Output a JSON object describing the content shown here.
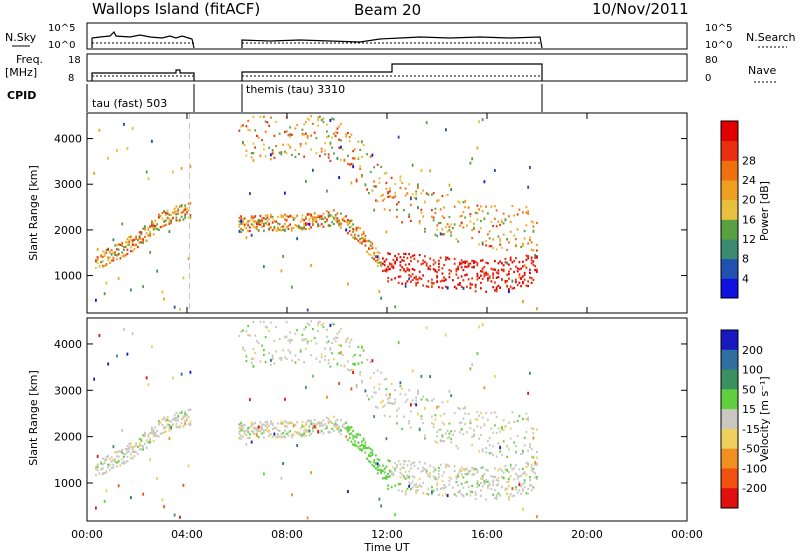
{
  "header": {
    "station": "Wallops Island (fitACF)",
    "beam": "Beam 20",
    "date": "10/Nov/2011"
  },
  "top_panels": {
    "nsky_label": "N.Sky",
    "nsky_ticks": [
      "10^5",
      "10^0"
    ],
    "nsearch_label": "N.Search",
    "nsearch_ticks": [
      "10^5",
      "10^0"
    ],
    "freq_label_line1": "Freq.",
    "freq_label_line2": "[MHz]",
    "freq_ticks": [
      "18",
      "8"
    ],
    "nave_label": "Nave",
    "nave_ticks": [
      "80",
      "0"
    ],
    "cpid_label": "CPID",
    "cpid_modes": [
      "tau (fast) 503",
      "themis (tau) 3310"
    ]
  },
  "colors": {
    "power": [
      "#1010e0",
      "#2050b0",
      "#3a8a70",
      "#5aa040",
      "#e8c040",
      "#f0a020",
      "#f07010",
      "#e83010",
      "#e00000"
    ],
    "velocity": [
      "#1818c0",
      "#2e6ea0",
      "#3a9060",
      "#60d040",
      "#c8c8c0",
      "#f0d060",
      "#f09020",
      "#f05010",
      "#e01010"
    ]
  },
  "chart_data": [
    {
      "type": "heatmap",
      "title": "",
      "ylabel": "Slant Range [km]",
      "xlabel": "",
      "x_ticks": [],
      "y_ticks": [
        "1000",
        "2000",
        "3000",
        "4000"
      ],
      "xlim_hours": [
        0,
        24
      ],
      "ylim_km": [
        180,
        4560
      ],
      "colorbar": {
        "label": "Power [dB]",
        "ticks": [
          "4",
          "8",
          "12",
          "16",
          "20",
          "24",
          "28"
        ]
      },
      "data_gaps_hours": [
        [
          4.1,
          6.0
        ],
        [
          18.0,
          24.0
        ]
      ],
      "traces": [
        {
          "feature": "lower echo band",
          "x_hours": [
            0.3,
            1.0,
            2.0,
            3.0,
            4.0,
            6.0,
            9.0,
            10.0,
            11.0,
            11.6,
            12.0,
            14.0,
            16.0,
            18.0
          ],
          "y_km": [
            1300,
            1480,
            1800,
            2250,
            2450,
            2150,
            2200,
            2300,
            1850,
            1400,
            1200,
            1100,
            1000,
            1150
          ]
        },
        {
          "feature": "upper echo band",
          "x_hours": [
            6.0,
            8.0,
            9.0,
            10.0,
            11.0,
            12.0,
            14.0,
            16.0,
            18.0
          ],
          "y_km": [
            4100,
            4050,
            4150,
            3950,
            3450,
            2800,
            2350,
            2050,
            2050
          ]
        }
      ]
    },
    {
      "type": "heatmap",
      "title": "",
      "ylabel": "Slant Range [km]",
      "xlabel": "Time UT",
      "x_ticks": [
        "00:00",
        "04:00",
        "08:00",
        "12:00",
        "16:00",
        "20:00",
        "00:00"
      ],
      "y_ticks": [
        "1000",
        "2000",
        "3000",
        "4000"
      ],
      "xlim_hours": [
        0,
        24
      ],
      "ylim_km": [
        180,
        4560
      ],
      "colorbar": {
        "label": "Velocity [m s⁻¹]",
        "ticks": [
          "200",
          "100",
          "50",
          "15",
          "-15",
          "-50",
          "-100",
          "-200"
        ]
      },
      "data_gaps_hours": [
        [
          4.1,
          6.0
        ],
        [
          18.0,
          24.0
        ]
      ]
    }
  ]
}
